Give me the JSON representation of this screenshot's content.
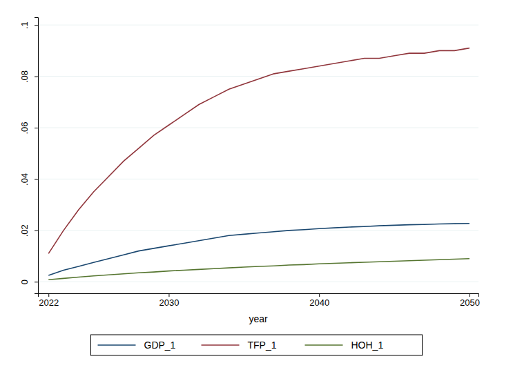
{
  "chart_data": {
    "type": "line",
    "x_label": "year",
    "x": [
      2022,
      2023,
      2024,
      2025,
      2026,
      2027,
      2028,
      2029,
      2030,
      2031,
      2032,
      2033,
      2034,
      2035,
      2036,
      2037,
      2038,
      2039,
      2040,
      2041,
      2042,
      2043,
      2044,
      2045,
      2046,
      2047,
      2048,
      2049,
      2050
    ],
    "series": [
      {
        "name": "GDP_1",
        "color": "#1a476f",
        "values": [
          0.0025,
          0.0045,
          0.006,
          0.0075,
          0.009,
          0.0105,
          0.012,
          0.013,
          0.014,
          0.015,
          0.016,
          0.017,
          0.018,
          0.0185,
          0.019,
          0.0195,
          0.02,
          0.0203,
          0.0207,
          0.021,
          0.0213,
          0.0215,
          0.0218,
          0.022,
          0.0222,
          0.0223,
          0.0225,
          0.0226,
          0.0227
        ]
      },
      {
        "name": "TFP_1",
        "color": "#90353b",
        "values": [
          0.011,
          0.02,
          0.028,
          0.035,
          0.041,
          0.047,
          0.052,
          0.057,
          0.061,
          0.065,
          0.069,
          0.072,
          0.075,
          0.077,
          0.079,
          0.081,
          0.082,
          0.083,
          0.084,
          0.085,
          0.086,
          0.087,
          0.087,
          0.088,
          0.089,
          0.089,
          0.09,
          0.09,
          0.091
        ]
      },
      {
        "name": "HOH_1",
        "color": "#55752f",
        "values": [
          0.0008,
          0.0013,
          0.0018,
          0.0023,
          0.0027,
          0.0031,
          0.0035,
          0.0038,
          0.0042,
          0.0045,
          0.0048,
          0.0051,
          0.0054,
          0.0057,
          0.006,
          0.0062,
          0.0065,
          0.0067,
          0.007,
          0.0072,
          0.0074,
          0.0076,
          0.0078,
          0.008,
          0.0082,
          0.0084,
          0.0086,
          0.0088,
          0.009
        ]
      }
    ],
    "xlim": [
      2021.3,
      2050.6
    ],
    "xticks": [
      2022,
      2030,
      2040,
      2050
    ],
    "ylim": [
      -0.0045,
      0.103
    ],
    "yticks": [
      0,
      {
        "value": 0.02,
        "label": ".02"
      },
      {
        "value": 0.04,
        "label": ".04"
      },
      {
        "value": 0.06,
        "label": ".06"
      },
      {
        "value": 0.08,
        "label": ".08"
      },
      {
        "value": 0.1,
        "label": ".1"
      }
    ],
    "grid": true,
    "legend": "bottom"
  }
}
